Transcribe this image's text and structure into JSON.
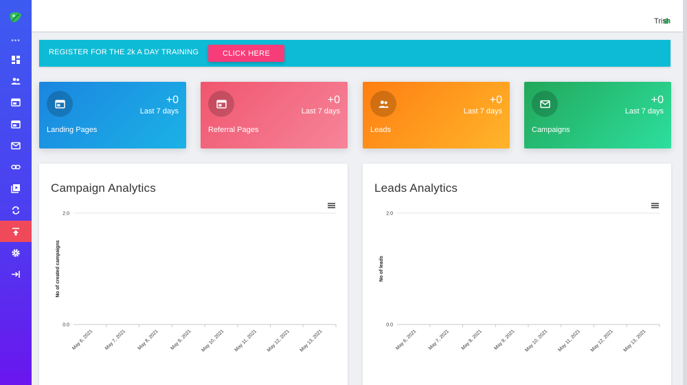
{
  "sidebar": {
    "logo_icon": "leaf-logo-icon",
    "more_dots": "•••",
    "items": [
      {
        "name": "dashboard",
        "icon": "dashboard-icon"
      },
      {
        "name": "users",
        "icon": "users-icon"
      },
      {
        "name": "landing-pages",
        "icon": "browser-window-icon"
      },
      {
        "name": "referral-pages",
        "icon": "browser-window-icon"
      },
      {
        "name": "email",
        "icon": "mail-icon"
      },
      {
        "name": "links",
        "icon": "link-icon"
      },
      {
        "name": "videos",
        "icon": "video-library-icon"
      },
      {
        "name": "sync",
        "icon": "sync-icon"
      },
      {
        "name": "upload",
        "icon": "upload-icon",
        "active": true
      },
      {
        "name": "settings",
        "icon": "gear-icon"
      },
      {
        "name": "logout",
        "icon": "logout-arrow-icon"
      }
    ],
    "active_color": "#f04a5a"
  },
  "topbar": {
    "user_name": "Trish"
  },
  "banner": {
    "text": "REGISTER FOR THE 2k A DAY TRAINING",
    "button_label": "CLICK HERE",
    "bg_color": "#0dbbd6",
    "button_color": "#f63d7a"
  },
  "stats": [
    {
      "value": "+0",
      "period": "Last 7 days",
      "label": "Landing Pages",
      "icon": "browser-window-icon"
    },
    {
      "value": "+0",
      "period": "Last 7 days",
      "label": "Referral Pages",
      "icon": "browser-window-icon"
    },
    {
      "value": "+0",
      "period": "Last 7 days",
      "label": "Leads",
      "icon": "users-icon"
    },
    {
      "value": "+0",
      "period": "Last 7 days",
      "label": "Campaigns",
      "icon": "mail-icon"
    }
  ],
  "panels": [
    {
      "title": "Campaign Analytics",
      "menu_icon": "hamburger-menu-icon"
    },
    {
      "title": "Leads Analytics",
      "menu_icon": "hamburger-menu-icon"
    }
  ],
  "chart_data": [
    {
      "type": "line",
      "title": "Campaign Analytics",
      "xlabel": "",
      "ylabel": "No of created campaigns",
      "categories": [
        "May 6, 2021",
        "May 7, 2021",
        "May 8, 2021",
        "May 9, 2021",
        "May 10, 2021",
        "May 11, 2021",
        "May 12, 2021",
        "May 13, 2021"
      ],
      "y_ticks": [
        "2.0",
        "0.0"
      ],
      "ylim": [
        0,
        2
      ],
      "series": [
        {
          "values": [
            0,
            0,
            0,
            0,
            0,
            0,
            0,
            0
          ]
        }
      ],
      "grid": true
    },
    {
      "type": "line",
      "title": "Leads Analytics",
      "xlabel": "",
      "ylabel": "No of leads",
      "categories": [
        "May 6, 2021",
        "May 7, 2021",
        "May 8, 2021",
        "May 9, 2021",
        "May 10, 2021",
        "May 11, 2021",
        "May 12, 2021",
        "May 13, 2021"
      ],
      "y_ticks": [
        "2.0",
        "0.0"
      ],
      "ylim": [
        0,
        2
      ],
      "series": [
        {
          "values": [
            0,
            0,
            0,
            0,
            0,
            0,
            0,
            0
          ]
        }
      ],
      "grid": true
    }
  ]
}
